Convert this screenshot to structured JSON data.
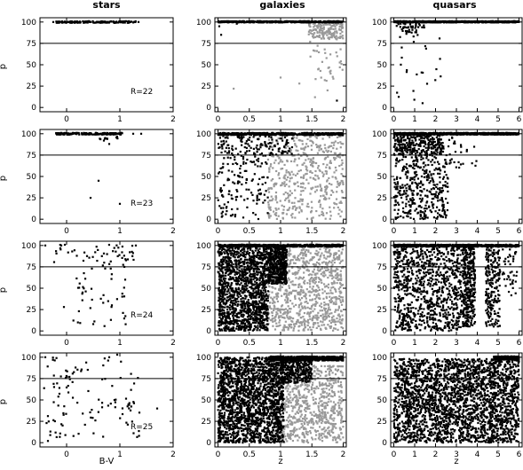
{
  "figure": {
    "column_titles": [
      "stars",
      "galaxies",
      "quasars"
    ],
    "ylabel": "p",
    "xlabels": [
      "B-V",
      "z",
      "z"
    ],
    "threshold": 75
  },
  "chart_data": [
    {
      "type": "scatter",
      "column": "stars",
      "row": 0,
      "annotation": "R=22",
      "xlim": [
        -0.5,
        2
      ],
      "ylim": [
        -5,
        105
      ],
      "xticks": [
        0,
        1,
        2
      ],
      "yticks": [
        0,
        25,
        50,
        75,
        100
      ],
      "hline": 75,
      "series": [
        {
          "color": "#000000",
          "points": [
            [
              -0.25,
              100
            ],
            [
              0.05,
              100
            ],
            [
              0.25,
              100
            ],
            [
              0.45,
              100
            ],
            [
              0.6,
              100
            ],
            [
              0.75,
              100
            ],
            [
              0.9,
              99
            ],
            [
              1.05,
              100
            ],
            [
              1.2,
              100
            ],
            [
              1.35,
              100
            ]
          ]
        }
      ],
      "generated": {
        "clusters": [
          {
            "color": "#000000",
            "n": 150,
            "x": [
              -0.2,
              1.3
            ],
            "y": [
              99,
              101
            ]
          }
        ]
      }
    },
    {
      "type": "scatter",
      "column": "stars",
      "row": 1,
      "annotation": "R=23",
      "xlim": [
        -0.5,
        2
      ],
      "ylim": [
        -5,
        105
      ],
      "xticks": [
        0,
        1,
        2
      ],
      "yticks": [
        0,
        25,
        50,
        75,
        100
      ],
      "hline": 75,
      "series": [
        {
          "color": "#000000",
          "points": [
            [
              0.7,
              92
            ],
            [
              0.8,
              88
            ],
            [
              0.6,
              45
            ],
            [
              0.45,
              25
            ],
            [
              1.0,
              18
            ],
            [
              0.55,
              100
            ],
            [
              0.95,
              100
            ],
            [
              1.25,
              100
            ],
            [
              1.4,
              100
            ]
          ]
        }
      ],
      "generated": {
        "clusters": [
          {
            "color": "#000000",
            "n": 160,
            "x": [
              -0.2,
              1.05
            ],
            "y": [
              99,
              101
            ]
          },
          {
            "color": "#000000",
            "n": 10,
            "x": [
              0.6,
              1.0
            ],
            "y": [
              93,
              100
            ]
          }
        ]
      }
    },
    {
      "type": "scatter",
      "column": "stars",
      "row": 2,
      "annotation": "R=24",
      "xlim": [
        -0.5,
        2
      ],
      "ylim": [
        -5,
        105
      ],
      "xticks": [
        0,
        1,
        2
      ],
      "yticks": [
        0,
        25,
        50,
        75,
        100
      ],
      "hline": 75,
      "series": [
        {
          "color": "#000000",
          "points": [
            [
              -0.4,
              100
            ],
            [
              -0.1,
              100
            ],
            [
              1.3,
              100
            ],
            [
              -0.05,
              28
            ],
            [
              0.3,
              45
            ],
            [
              0.5,
              8
            ],
            [
              0.85,
              30
            ],
            [
              1.1,
              60
            ]
          ]
        }
      ],
      "generated": {
        "clusters": [
          {
            "color": "#000000",
            "n": 45,
            "x": [
              -0.3,
              1.3
            ],
            "y": [
              80,
              101
            ]
          },
          {
            "color": "#000000",
            "n": 45,
            "x": [
              0.1,
              1.2
            ],
            "y": [
              5,
              80
            ]
          }
        ]
      }
    },
    {
      "type": "scatter",
      "column": "stars",
      "row": 3,
      "annotation": "R=25",
      "xlim": [
        -0.5,
        2
      ],
      "ylim": [
        -5,
        105
      ],
      "xticks": [
        0,
        1,
        2
      ],
      "yticks": [
        0,
        25,
        50,
        75,
        100
      ],
      "hline": 75,
      "xlabel": "B-V",
      "series": [
        {
          "color": "#000000",
          "points": [
            [
              -0.4,
              100
            ],
            [
              -0.35,
              2
            ],
            [
              1.7,
              40
            ],
            [
              0.8,
              100
            ],
            [
              0.95,
              103
            ]
          ]
        }
      ],
      "generated": {
        "clusters": [
          {
            "color": "#000000",
            "n": 110,
            "x": [
              -0.45,
              1.4
            ],
            "y": [
              5,
              100
            ]
          }
        ]
      }
    },
    {
      "type": "scatter",
      "column": "galaxies",
      "row": 0,
      "xlim": [
        -0.05,
        2.05
      ],
      "ylim": [
        -5,
        105
      ],
      "xticks": [
        0,
        0.5,
        1,
        1.5,
        2
      ],
      "yticks": [
        0,
        25,
        50,
        75,
        100
      ],
      "hline": 75,
      "series": [
        {
          "color": "#000000",
          "points": [
            [
              0.02,
              95
            ],
            [
              0.05,
              85
            ],
            [
              0.3,
              98
            ],
            [
              1.9,
              8
            ]
          ]
        },
        {
          "color": "#999999",
          "points": [
            [
              0.25,
              22
            ],
            [
              1.0,
              35
            ],
            [
              1.3,
              28
            ],
            [
              1.55,
              12
            ],
            [
              1.75,
              20
            ]
          ]
        }
      ],
      "generated": {
        "clusters": [
          {
            "color": "#000000",
            "n": 420,
            "x": [
              0,
              2
            ],
            "y": [
              99.4,
              101
            ]
          },
          {
            "color": "#999999",
            "n": 160,
            "x": [
              1.45,
              2
            ],
            "y": [
              80,
              100
            ]
          },
          {
            "color": "#999999",
            "n": 35,
            "x": [
              1.45,
              2
            ],
            "y": [
              30,
              80
            ]
          }
        ]
      }
    },
    {
      "type": "scatter",
      "column": "galaxies",
      "row": 1,
      "xlim": [
        -0.05,
        2.05
      ],
      "ylim": [
        -5,
        105
      ],
      "xticks": [
        0,
        0.5,
        1,
        1.5,
        2
      ],
      "yticks": [
        0,
        25,
        50,
        75,
        100
      ],
      "hline": 75,
      "series": [],
      "generated": {
        "clusters": [
          {
            "color": "#000000",
            "n": 500,
            "x": [
              0,
              2
            ],
            "y": [
              98.5,
              101
            ]
          },
          {
            "color": "#000000",
            "n": 150,
            "x": [
              0,
              1.2
            ],
            "y": [
              75,
              100
            ]
          },
          {
            "color": "#000000",
            "n": 150,
            "x": [
              0,
              0.8
            ],
            "y": [
              0,
              75
            ]
          },
          {
            "color": "#999999",
            "n": 500,
            "x": [
              0.8,
              2
            ],
            "y": [
              0,
              100
            ]
          }
        ]
      }
    },
    {
      "type": "scatter",
      "column": "galaxies",
      "row": 2,
      "xlim": [
        -0.05,
        2.05
      ],
      "ylim": [
        -5,
        105
      ],
      "xticks": [
        0,
        0.5,
        1,
        1.5,
        2
      ],
      "yticks": [
        0,
        25,
        50,
        75,
        100
      ],
      "hline": 75,
      "series": [],
      "generated": {
        "clusters": [
          {
            "color": "#000000",
            "n": 500,
            "x": [
              0,
              2
            ],
            "y": [
              98.5,
              101
            ]
          },
          {
            "color": "#000000",
            "n": 1400,
            "x": [
              0,
              0.8
            ],
            "y": [
              0,
              100
            ]
          },
          {
            "color": "#000000",
            "n": 450,
            "x": [
              0.8,
              1.1
            ],
            "y": [
              55,
              100
            ]
          },
          {
            "color": "#999999",
            "n": 900,
            "x": [
              0.8,
              2
            ],
            "y": [
              0,
              100
            ]
          }
        ]
      }
    },
    {
      "type": "scatter",
      "column": "galaxies",
      "row": 3,
      "xlim": [
        -0.05,
        2.05
      ],
      "ylim": [
        -5,
        105
      ],
      "xticks": [
        0,
        0.5,
        1,
        1.5,
        2
      ],
      "yticks": [
        0,
        25,
        50,
        75,
        100
      ],
      "hline": 75,
      "xlabel": "z",
      "series": [],
      "generated": {
        "clusters": [
          {
            "color": "#000000",
            "n": 600,
            "x": [
              0.8,
              2
            ],
            "y": [
              96,
              101
            ]
          },
          {
            "color": "#000000",
            "n": 1900,
            "x": [
              0,
              1.05
            ],
            "y": [
              0,
              100
            ]
          },
          {
            "color": "#999999",
            "n": 800,
            "x": [
              0.9,
              2
            ],
            "y": [
              0,
              90
            ]
          },
          {
            "color": "#000000",
            "n": 300,
            "x": [
              1.0,
              1.5
            ],
            "y": [
              70,
              98
            ]
          }
        ]
      }
    },
    {
      "type": "scatter",
      "column": "quasars",
      "row": 0,
      "xlim": [
        -0.15,
        6.15
      ],
      "ylim": [
        -5,
        105
      ],
      "xticks": [
        0,
        1,
        2,
        3,
        4,
        5,
        6
      ],
      "yticks": [
        0,
        25,
        50,
        75,
        100
      ],
      "hline": 75,
      "series": [],
      "generated": {
        "clusters": [
          {
            "color": "#000000",
            "n": 600,
            "x": [
              0,
              6
            ],
            "y": [
              99.4,
              101
            ]
          },
          {
            "color": "#000000",
            "n": 45,
            "x": [
              0,
              1.5
            ],
            "y": [
              86,
              99
            ]
          },
          {
            "color": "#000000",
            "n": 25,
            "x": [
              0,
              2.3
            ],
            "y": [
              5,
              85
            ]
          }
        ]
      }
    },
    {
      "type": "scatter",
      "column": "quasars",
      "row": 1,
      "xlim": [
        -0.15,
        6.15
      ],
      "ylim": [
        -5,
        105
      ],
      "xticks": [
        0,
        1,
        2,
        3,
        4,
        5,
        6
      ],
      "yticks": [
        0,
        25,
        50,
        75,
        100
      ],
      "hline": 75,
      "series": [],
      "generated": {
        "clusters": [
          {
            "color": "#000000",
            "n": 700,
            "x": [
              0,
              6
            ],
            "y": [
              99,
              101
            ]
          },
          {
            "color": "#000000",
            "n": 300,
            "x": [
              0,
              2.4
            ],
            "y": [
              75,
              99
            ]
          },
          {
            "color": "#000000",
            "n": 400,
            "x": [
              0,
              2.6
            ],
            "y": [
              0,
              75
            ]
          },
          {
            "color": "#000000",
            "n": 30,
            "x": [
              2.5,
              4
            ],
            "y": [
              60,
              99
            ]
          }
        ]
      }
    },
    {
      "type": "scatter",
      "column": "quasars",
      "row": 2,
      "xlim": [
        -0.15,
        6.15
      ],
      "ylim": [
        -5,
        105
      ],
      "xticks": [
        0,
        1,
        2,
        3,
        4,
        5,
        6
      ],
      "yticks": [
        0,
        25,
        50,
        75,
        100
      ],
      "hline": 75,
      "series": [],
      "generated": {
        "clusters": [
          {
            "color": "#000000",
            "n": 700,
            "x": [
              0,
              6
            ],
            "y": [
              98.5,
              101
            ]
          },
          {
            "color": "#000000",
            "n": 900,
            "x": [
              0,
              3.3
            ],
            "y": [
              0,
              99
            ]
          },
          {
            "color": "#000000",
            "n": 350,
            "x": [
              3.3,
              3.9
            ],
            "y": [
              5,
              99
            ]
          },
          {
            "color": "#000000",
            "n": 220,
            "x": [
              4.4,
              5.1
            ],
            "y": [
              5,
              99
            ]
          },
          {
            "color": "#000000",
            "n": 40,
            "x": [
              5.2,
              6
            ],
            "y": [
              40,
              99
            ]
          }
        ]
      }
    },
    {
      "type": "scatter",
      "column": "quasars",
      "row": 3,
      "xlim": [
        -0.15,
        6.15
      ],
      "ylim": [
        -5,
        105
      ],
      "xticks": [
        0,
        1,
        2,
        3,
        4,
        5,
        6
      ],
      "yticks": [
        0,
        25,
        50,
        75,
        100
      ],
      "hline": 75,
      "xlabel": "z",
      "series": [],
      "generated": {
        "clusters": [
          {
            "color": "#000000",
            "n": 300,
            "x": [
              4.8,
              6
            ],
            "y": [
              97,
              101
            ]
          },
          {
            "color": "#000000",
            "n": 2600,
            "x": [
              0,
              6
            ],
            "y": [
              0,
              98
            ]
          }
        ]
      }
    }
  ]
}
